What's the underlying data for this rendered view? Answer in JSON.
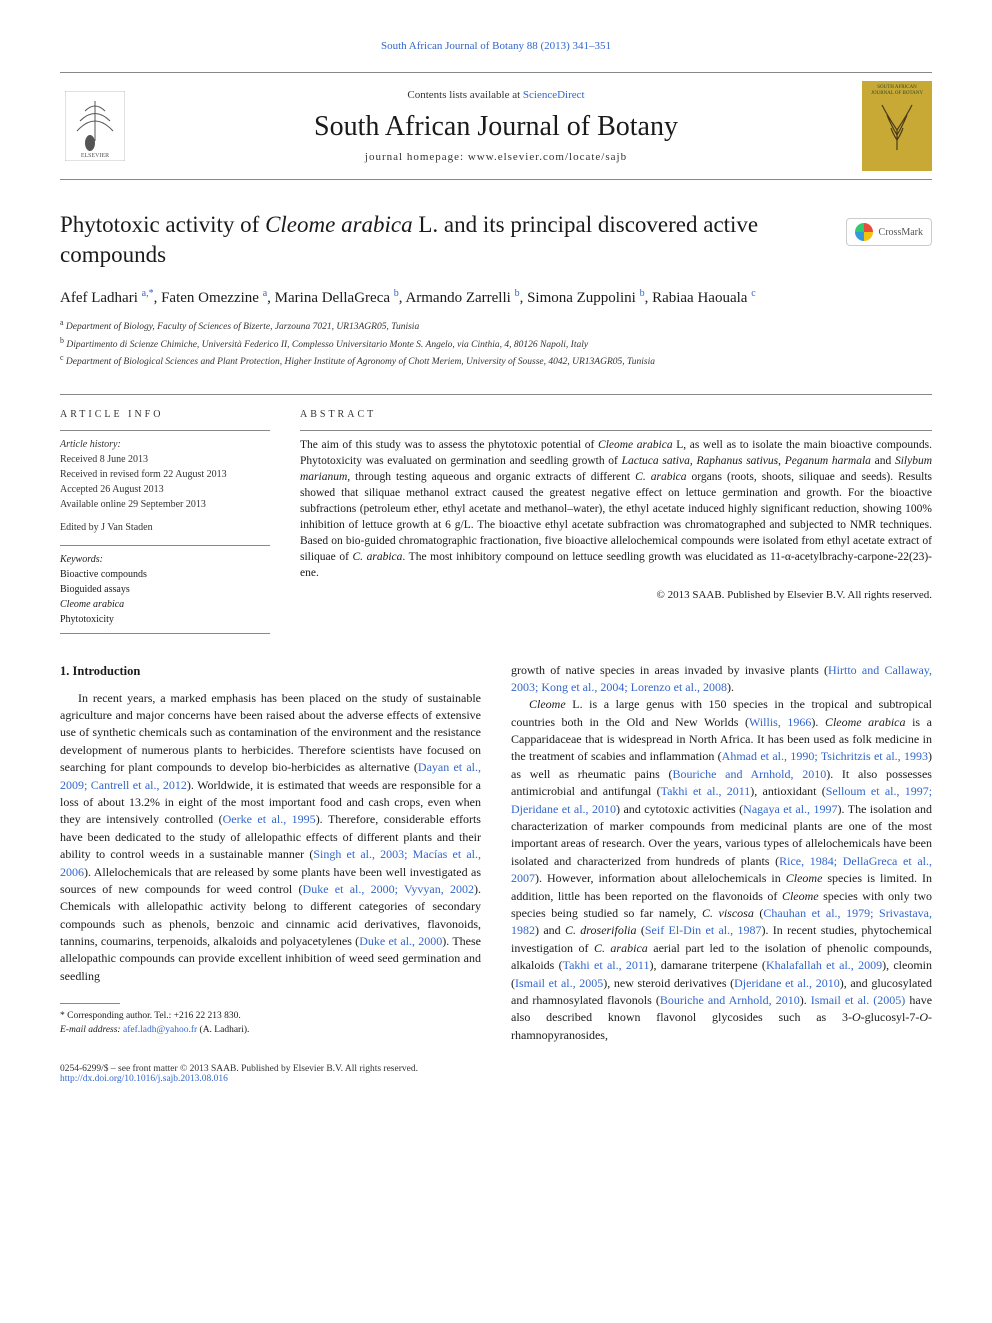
{
  "top_link": "South African Journal of Botany 88 (2013) 341–351",
  "masthead": {
    "contents_pre": "Contents lists available at ",
    "contents_link": "ScienceDirect",
    "journal_title": "South African Journal of Botany",
    "homepage_pre": "journal homepage: ",
    "homepage_url": "www.elsevier.com/locate/sajb",
    "cover_label": "SOUTH AFRICAN JOURNAL OF BOTANY"
  },
  "crossmark_label": "CrossMark",
  "title_html": "Phytotoxic activity of <em>Cleome arabica</em> L. and its principal discovered active compounds",
  "authors_html": "Afef Ladhari <a href='#'><sup>a,</sup></a><a href='#'><sup>*</sup></a>, Faten Omezzine <a href='#'><sup>a</sup></a>, Marina DellaGreca <a href='#'><sup>b</sup></a>, Armando Zarrelli <a href='#'><sup>b</sup></a>, Simona Zuppolini <a href='#'><sup>b</sup></a>, Rabiaa Haouala <a href='#'><sup>c</sup></a>",
  "affiliations": [
    "a  Department of Biology, Faculty of Sciences of Bizerte, Jarzouna 7021, UR13AGR05, Tunisia",
    "b  Dipartimento di Scienze Chimiche, Università Federico II, Complesso Universitario Monte S. Angelo, via Cinthia, 4, 80126 Napoli, Italy",
    "c  Department of Biological Sciences and Plant Protection, Higher Institute of Agronomy of Chott Meriem, University of Sousse, 4042, UR13AGR05, Tunisia"
  ],
  "article_info_heading": "article info",
  "history": {
    "heading": "Article history:",
    "received": "Received 8 June 2013",
    "revised": "Received in revised form 22 August 2013",
    "accepted": "Accepted 26 August 2013",
    "online": "Available online 29 September 2013"
  },
  "editor": "Edited by J Van Staden",
  "keywords": {
    "heading": "Keywords:",
    "items": [
      "Bioactive compounds",
      "Bioguided assays",
      "Cleome arabica",
      "Phytotoxicity"
    ]
  },
  "abstract_heading": "abstract",
  "abstract_html": "The aim of this study was to assess the phytotoxic potential of <em>Cleome arabica</em> L, as well as to isolate the main bioactive compounds. Phytotoxicity was evaluated on germination and seedling growth of <em>Lactuca sativa</em>, <em>Raphanus sativus</em>, <em>Peganum harmala</em> and <em>Silybum marianum</em>, through testing aqueous and organic extracts of different <em>C. arabica</em> organs (roots, shoots, siliquae and seeds). Results showed that siliquae methanol extract caused the greatest negative effect on lettuce germination and growth. For the bioactive subfractions (petroleum ether, ethyl acetate and methanol–water), the ethyl acetate induced highly significant reduction, showing 100% inhibition of lettuce growth at 6 g/L. The bioactive ethyl acetate subfraction was chromatographed and subjected to NMR techniques. Based on bio-guided chromatographic fractionation, five bioactive allelochemical compounds were isolated from ethyl acetate extract of siliquae of <em>C. arabica</em>. The most inhibitory compound on lettuce seedling growth was elucidated as 11-α-acetylbrachy-carpone-22(23)-ene.",
  "copyright": "© 2013 SAAB. Published by Elsevier B.V. All rights reserved.",
  "intro_heading": "1. Introduction",
  "col1_html": "In recent years, a marked emphasis has been placed on the study of sustainable agriculture and major concerns have been raised about the adverse effects of extensive use of synthetic chemicals such as contamination of the environment and the resistance development of numerous plants to herbicides. Therefore scientists have focused on searching for plant compounds to develop bio-herbicides as alternative (<a href='#'>Dayan et al., 2009; Cantrell et al., 2012</a>). Worldwide, it is estimated that weeds are responsible for a loss of about 13.2% in eight of the most important food and cash crops, even when they are intensively controlled (<a href='#'>Oerke et al., 1995</a>). Therefore, considerable efforts have been dedicated to the study of allelopathic effects of different plants and their ability to control weeds in a sustainable manner (<a href='#'>Singh et al., 2003; Macías et al., 2006</a>). Allelochemicals that are released by some plants have been well investigated as sources of new compounds for weed control (<a href='#'>Duke et al., 2000; Vyvyan, 2002</a>). Chemicals with allelopathic activity belong to different categories of secondary compounds such as phenols, benzoic and cinnamic acid derivatives, flavonoids, tannins, coumarins, terpenoids, alkaloids and polyacetylenes (<a href='#'>Duke et al., 2000</a>). These allelopathic compounds can provide excellent inhibition of weed seed germination and seedling",
  "col2_html_p1": "growth of native species in areas invaded by invasive plants (<a href='#'>Hirtto and Callaway, 2003; Kong et al., 2004; Lorenzo et al., 2008</a>).",
  "col2_html_p2": "<em>Cleome</em> L. is a large genus with 150 species in the tropical and subtropical countries both in the Old and New Worlds (<a href='#'>Willis, 1966</a>). <em>Cleome arabica</em> is a Capparidaceae that is widespread in North Africa. It has been used as folk medicine in the treatment of scabies and inflammation (<a href='#'>Ahmad et al., 1990; Tsichritzis et al., 1993</a>) as well as rheumatic pains (<a href='#'>Bouriche and Arnhold, 2010</a>). It also possesses antimicrobial and antifungal (<a href='#'>Takhi et al., 2011</a>), antioxidant (<a href='#'>Selloum et al., 1997; Djeridane et al., 2010</a>) and cytotoxic activities (<a href='#'>Nagaya et al., 1997</a>). The isolation and characterization of marker compounds from medicinal plants are one of the most important areas of research. Over the years, various types of allelochemicals have been isolated and characterized from hundreds of plants (<a href='#'>Rice, 1984; DellaGreca et al., 2007</a>). However, information about allelochemicals in <em>Cleome</em> species is limited. In addition, little has been reported on the flavonoids of <em>Cleome</em> species with only two species being studied so far namely, <em>C. viscosa</em> (<a href='#'>Chauhan et al., 1979; Srivastava, 1982</a>) and <em>C. droserifolia</em> (<a href='#'>Seif El-Din et al., 1987</a>). In recent studies, phytochemical investigation of <em>C. arabica</em> aerial part led to the isolation of phenolic compounds, alkaloids (<a href='#'>Takhi et al., 2011</a>), damarane triterpene (<a href='#'>Khalafallah et al., 2009</a>), cleomin (<a href='#'>Ismail et al., 2005</a>), new steroid derivatives (<a href='#'>Djeridane et al., 2010</a>), and glucosylated and rhamnosylated flavonols (<a href='#'>Bouriche and Arnhold, 2010</a>). <a href='#'>Ismail et al. (2005)</a> have also described known flavonol glycosides such as 3-<em>O</em>-glucosyl-7-<em>O</em>-rhamnopyranosides,",
  "footnotes": {
    "corr": "* Corresponding author. Tel.: +216 22 213 830.",
    "email_pre": "E-mail address: ",
    "email": "afef.ladh@yahoo.fr",
    "email_post": " (A. Ladhari)."
  },
  "footer": {
    "issn_line": "0254-6299/$ – see front matter © 2013 SAAB. Published by Elsevier B.V. All rights reserved.",
    "doi": "http://dx.doi.org/10.1016/j.sajb.2013.08.016"
  },
  "colors": {
    "link": "#3366cc",
    "rule": "#888888",
    "cover_bg": "#c9a936",
    "cover_text": "#2a4a2a",
    "elsevier_orange": "#e9711c"
  }
}
